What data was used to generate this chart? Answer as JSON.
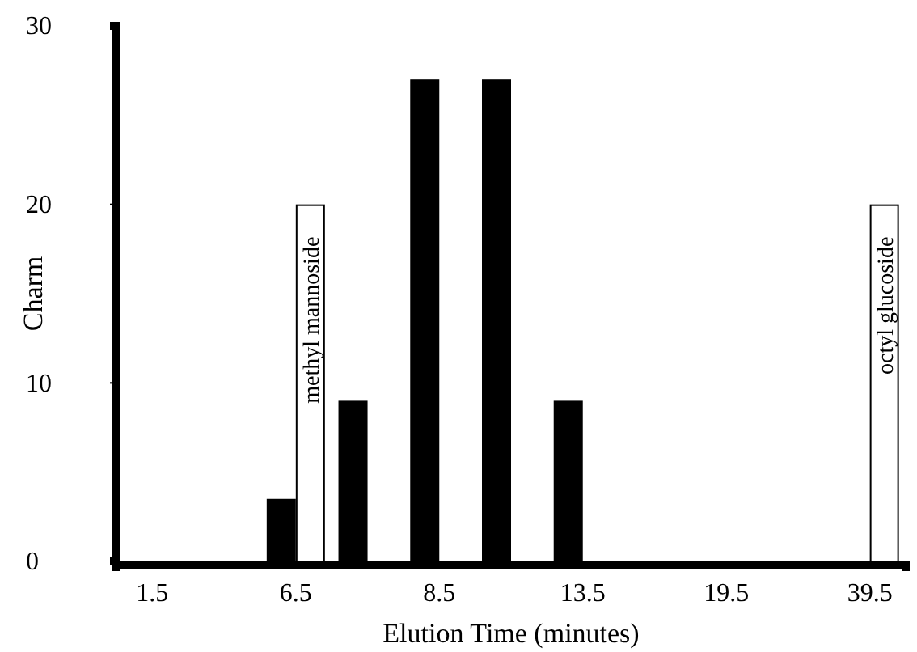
{
  "chart_data": {
    "type": "bar",
    "xlabel": "Elution Time (minutes)",
    "ylabel": "Charm",
    "categories": [
      "1.5",
      null,
      "6.5",
      null,
      "8.5",
      null,
      "13.5",
      null,
      "19.5",
      null,
      "39.5"
    ],
    "series": [
      {
        "color": "#000000",
        "values": [
          null,
          null,
          3.5,
          9,
          27,
          27,
          9,
          null,
          null,
          null,
          null
        ]
      },
      {
        "color": "#ffffff",
        "values": [
          null,
          null,
          20,
          null,
          null,
          null,
          null,
          null,
          null,
          null,
          20
        ]
      }
    ],
    "ylim": [
      0,
      30
    ],
    "yticks": [
      0,
      10,
      20,
      30
    ],
    "annotations": [
      "methyl mannoside",
      "octyl glucoside"
    ]
  }
}
